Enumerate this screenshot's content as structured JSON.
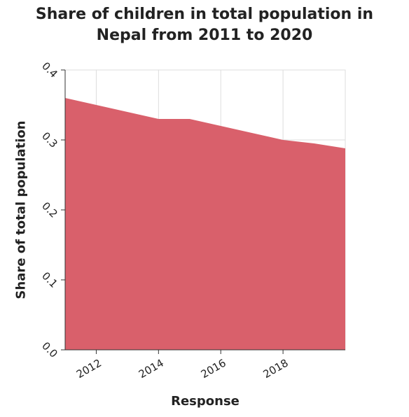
{
  "chart_data": {
    "type": "area",
    "title_lines": [
      "Share of children in total population in",
      "Nepal from 2011 to 2020"
    ],
    "xlabel": "Response",
    "ylabel": "Share of total population",
    "x": [
      2011,
      2012,
      2013,
      2014,
      2015,
      2016,
      2017,
      2018,
      2019,
      2020
    ],
    "series": [
      {
        "values": [
          0.36,
          0.35,
          0.34,
          0.33,
          0.33,
          0.32,
          0.31,
          0.3,
          0.295,
          0.288
        ]
      }
    ],
    "xlim": [
      2011,
      2020
    ],
    "ylim": [
      0,
      0.4
    ],
    "xticks": [
      "2012",
      "2014",
      "2016",
      "2018"
    ],
    "yticks": [
      "0.0",
      "0.1",
      "0.2",
      "0.3",
      "0.4"
    ],
    "fill_color": "#d9606b",
    "grid": true
  }
}
